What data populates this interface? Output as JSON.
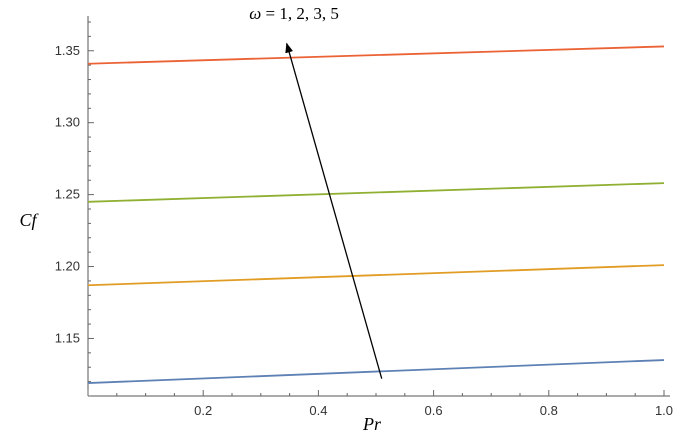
{
  "chart_data": {
    "type": "line",
    "xlabel": "Pr",
    "ylabel": "Cf",
    "xlim": [
      0,
      1.0
    ],
    "ylim": [
      1.11,
      1.37
    ],
    "x_ticks": [
      0.2,
      0.4,
      0.6,
      0.8,
      1.0
    ],
    "x_tick_labels": [
      "0.2",
      "0.4",
      "0.6",
      "0.8",
      "1.0"
    ],
    "y_ticks": [
      1.15,
      1.2,
      1.25,
      1.3,
      1.35
    ],
    "y_tick_labels": [
      "1.15",
      "1.20",
      "1.25",
      "1.30",
      "1.35"
    ],
    "grid": false,
    "series": [
      {
        "color": "#5e81b5",
        "x": [
          0,
          1.0
        ],
        "y": [
          1.119,
          1.135
        ]
      },
      {
        "color": "#e19c24",
        "x": [
          0,
          1.0
        ],
        "y": [
          1.187,
          1.201
        ]
      },
      {
        "color": "#8fb032",
        "x": [
          0,
          1.0
        ],
        "y": [
          1.245,
          1.258
        ]
      },
      {
        "color": "#eb6235",
        "x": [
          0,
          1.0
        ],
        "y": [
          1.341,
          1.353
        ]
      }
    ],
    "annotation": {
      "symbol": "ω",
      "equals": " = ",
      "values": "1, 2, 3, 5",
      "arrow_from": [
        0.51,
        1.122
      ],
      "arrow_to": [
        0.345,
        1.355
      ],
      "text_anchor": [
        0.28,
        1.372
      ]
    }
  }
}
